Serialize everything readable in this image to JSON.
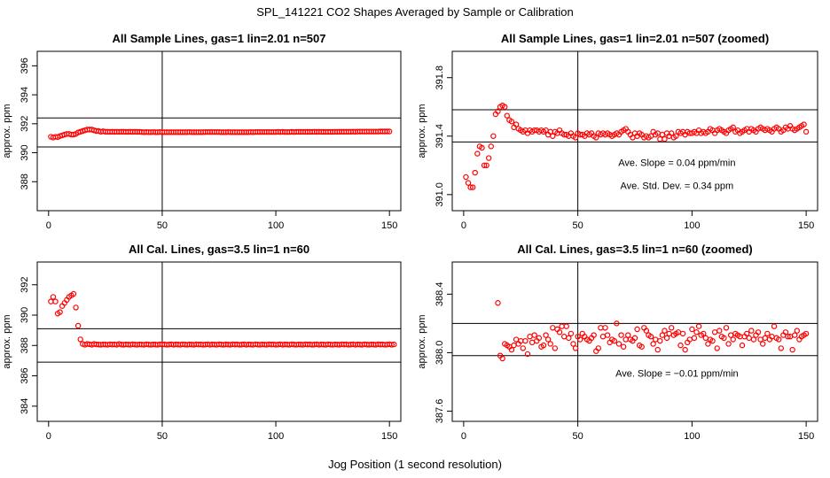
{
  "figure": {
    "title": "SPL_141221  CO2 Shapes Averaged by Sample or Calibration",
    "xlabel": "Jog Position (1 second resolution)"
  },
  "chart_data": [
    {
      "type": "scatter",
      "title": "All Sample Lines, gas=1 lin=2.01 n=507",
      "ylabel": "approx. ppm",
      "xlim": [
        -5,
        155
      ],
      "ylim": [
        386,
        397
      ],
      "xticks": [
        0,
        50,
        100,
        150
      ],
      "yticks": [
        388,
        390,
        392,
        394,
        396
      ],
      "hlines": [
        392.4,
        390.4
      ],
      "vline": 50,
      "annotations": [],
      "series": [
        {
          "color": "#ff0000",
          "x_start": 1,
          "x_step": 1,
          "y": [
            391.1,
            391.05,
            391.1,
            391.08,
            391.15,
            391.2,
            391.25,
            391.3,
            391.3,
            391.25,
            391.25,
            391.3,
            391.4,
            391.45,
            391.5,
            391.55,
            391.6,
            391.6,
            391.6,
            391.55,
            391.5,
            391.5,
            391.45,
            391.48,
            391.45,
            391.45,
            391.44,
            391.45,
            391.44,
            391.45,
            391.44,
            391.45,
            391.45,
            391.44,
            391.44,
            391.45,
            391.44,
            391.45,
            391.44,
            391.44,
            391.43,
            391.42,
            391.43,
            391.42,
            391.42,
            391.43,
            391.42,
            391.42,
            391.43,
            391.42,
            391.42,
            391.42,
            391.42,
            391.42,
            391.42,
            391.42,
            391.42,
            391.42,
            391.42,
            391.42,
            391.42,
            391.43,
            391.42,
            391.42,
            391.42,
            391.42,
            391.42,
            391.42,
            391.43,
            391.43,
            391.43,
            391.43,
            391.43,
            391.43,
            391.43,
            391.42,
            391.42,
            391.42,
            391.43,
            391.42,
            391.42,
            391.42,
            391.42,
            391.42,
            391.42,
            391.42,
            391.42,
            391.42,
            391.43,
            391.42,
            391.43,
            391.43,
            391.43,
            391.43,
            391.43,
            391.43,
            391.43,
            391.43,
            391.43,
            391.43,
            391.44,
            391.43,
            391.44,
            391.43,
            391.43,
            391.43,
            391.44,
            391.43,
            391.44,
            391.44,
            391.44,
            391.44,
            391.44,
            391.44,
            391.44,
            391.44,
            391.45,
            391.44,
            391.45,
            391.44,
            391.44,
            391.44,
            391.44,
            391.44,
            391.44,
            391.45,
            391.44,
            391.45,
            391.45,
            391.45,
            391.45,
            391.45,
            391.45,
            391.46,
            391.45,
            391.46,
            391.46,
            391.46,
            391.46,
            391.46,
            391.46,
            391.46,
            391.46,
            391.46,
            391.46,
            391.47,
            391.47,
            391.47,
            391.47,
            391.47
          ]
        }
      ]
    },
    {
      "type": "scatter",
      "title": "All Sample Lines, gas=1 lin=2.01 n=507 (zoomed)",
      "ylabel": "approx. ppm",
      "xlim": [
        -5,
        155
      ],
      "ylim": [
        390.89,
        391.98
      ],
      "xticks": [
        0,
        50,
        100,
        150
      ],
      "yticks": [
        391.0,
        391.4,
        391.8
      ],
      "yticklabels": [
        "391.0",
        "391.4",
        "391.8"
      ],
      "hlines": [
        391.58,
        391.36
      ],
      "vline": 50,
      "annotations": [
        "Ave. Slope =  0.04  ppm/min",
        "Ave. Std. Dev. =  0.34  ppm"
      ],
      "series": [
        {
          "color": "#ff0000",
          "x_start": 1,
          "x_step": 1,
          "y": [
            391.12,
            391.08,
            391.05,
            391.05,
            391.15,
            391.28,
            391.33,
            391.32,
            391.2,
            391.2,
            391.25,
            391.33,
            391.4,
            391.55,
            391.57,
            391.6,
            391.61,
            391.6,
            391.54,
            391.51,
            391.5,
            391.46,
            391.48,
            391.45,
            391.44,
            391.43,
            391.44,
            391.42,
            391.44,
            391.43,
            391.44,
            391.44,
            391.43,
            391.44,
            391.43,
            391.44,
            391.41,
            391.43,
            391.4,
            391.43,
            391.42,
            391.44,
            391.42,
            391.41,
            391.41,
            391.4,
            391.42,
            391.4,
            391.39,
            391.42,
            391.41,
            391.41,
            391.4,
            391.42,
            391.41,
            391.42,
            391.4,
            391.39,
            391.42,
            391.41,
            391.42,
            391.41,
            391.42,
            391.41,
            391.4,
            391.41,
            391.42,
            391.41,
            391.43,
            391.44,
            391.45,
            391.43,
            391.41,
            391.39,
            391.42,
            391.4,
            391.42,
            391.41,
            391.39,
            391.4,
            391.39,
            391.4,
            391.43,
            391.41,
            391.42,
            391.38,
            391.41,
            391.38,
            391.42,
            391.4,
            391.42,
            391.39,
            391.4,
            391.43,
            391.42,
            391.43,
            391.41,
            391.43,
            391.42,
            391.42,
            391.43,
            391.42,
            391.44,
            391.42,
            391.43,
            391.42,
            391.43,
            391.45,
            391.44,
            391.42,
            391.44,
            391.45,
            391.44,
            391.43,
            391.42,
            391.44,
            391.45,
            391.46,
            391.43,
            391.44,
            391.42,
            391.43,
            391.44,
            391.45,
            391.43,
            391.45,
            391.44,
            391.43,
            391.45,
            391.46,
            391.45,
            391.44,
            391.45,
            391.44,
            391.43,
            391.45,
            391.46,
            391.45,
            391.43,
            391.44,
            391.46,
            391.45,
            391.47,
            391.45,
            391.44,
            391.45,
            391.46,
            391.47,
            391.48,
            391.43
          ]
        }
      ]
    },
    {
      "type": "scatter",
      "title": "All Cal. Lines, gas=3.5 lin=1 n=60",
      "ylabel": "approx. ppm",
      "xlim": [
        -5,
        155
      ],
      "ylim": [
        383,
        393.5
      ],
      "xticks": [
        0,
        50,
        100,
        150
      ],
      "yticks": [
        384,
        386,
        388,
        390,
        392
      ],
      "hlines": [
        389.1,
        386.9
      ],
      "vline": 50,
      "annotations": [],
      "series": [
        {
          "color": "#ff0000",
          "x_start": 1,
          "x_step": 1,
          "y": [
            390.9,
            391.2,
            390.9,
            390.1,
            390.2,
            390.6,
            390.8,
            391.0,
            391.2,
            391.3,
            391.4,
            390.5,
            389.3,
            388.4,
            388.1,
            388.05,
            388.1,
            388.08,
            388.05,
            388.1,
            388.07,
            388.06,
            388.05,
            388.07,
            388.06,
            388.05,
            388.08,
            388.06,
            388.07,
            388.05,
            388.1,
            388.06,
            388.05,
            388.07,
            388.06,
            388.05,
            388.08,
            388.06,
            388.05,
            388.07,
            388.06,
            388.05,
            388.08,
            388.06,
            388.05,
            388.07,
            388.06,
            388.05,
            388.08,
            388.06,
            388.07,
            388.05,
            388.06,
            388.08,
            388.05,
            388.07,
            388.06,
            388.05,
            388.08,
            388.06,
            388.05,
            388.07,
            388.06,
            388.05,
            388.08,
            388.06,
            388.07,
            388.05,
            388.06,
            388.08,
            388.05,
            388.07,
            388.06,
            388.05,
            388.08,
            388.06,
            388.05,
            388.07,
            388.06,
            388.05,
            388.08,
            388.06,
            388.07,
            388.05,
            388.06,
            388.08,
            388.05,
            388.07,
            388.06,
            388.05,
            388.08,
            388.06,
            388.05,
            388.07,
            388.06,
            388.05,
            388.08,
            388.06,
            388.07,
            388.05,
            388.06,
            388.08,
            388.05,
            388.07,
            388.06,
            388.05,
            388.08,
            388.06,
            388.05,
            388.07,
            388.06,
            388.05,
            388.08,
            388.06,
            388.07,
            388.05,
            388.06,
            388.08,
            388.05,
            388.07,
            388.06,
            388.05,
            388.08,
            388.06,
            388.05,
            388.07,
            388.06,
            388.05,
            388.08,
            388.06,
            388.07,
            388.05,
            388.06,
            388.08,
            388.05,
            388.07,
            388.06,
            388.05,
            388.08,
            388.06,
            388.05,
            388.07,
            388.06,
            388.05,
            388.08,
            388.06,
            388.07,
            388.05,
            388.06,
            388.08,
            388.05,
            388.07
          ]
        }
      ]
    },
    {
      "type": "scatter",
      "title": "All Cal. Lines, gas=3.5 lin=1 n=60 (zoomed)",
      "ylabel": "approx. ppm",
      "xlim": [
        -5,
        155
      ],
      "ylim": [
        387.53,
        388.62
      ],
      "xticks": [
        0,
        50,
        100,
        150
      ],
      "yticks": [
        387.6,
        388.0,
        388.4
      ],
      "yticklabels": [
        "387.6",
        "388.0",
        "388.4"
      ],
      "hlines": [
        388.2,
        387.98
      ],
      "vline": 50,
      "annotations": [
        "Ave. Slope =  −0.01  ppm/min"
      ],
      "series": [
        {
          "color": "#ff0000",
          "x_start": 15,
          "x_step": 1,
          "y": [
            388.34,
            387.98,
            387.96,
            388.06,
            388.05,
            388.04,
            388.02,
            388.05,
            388.09,
            388.06,
            388.08,
            388.03,
            388.08,
            387.99,
            388.11,
            388.07,
            388.12,
            388.08,
            388.1,
            388.04,
            388.05,
            388.12,
            388.09,
            388.06,
            388.17,
            388.03,
            388.16,
            388.14,
            388.18,
            388.11,
            388.18,
            388.1,
            388.13,
            388.06,
            388.03,
            388.11,
            388.09,
            388.13,
            388.11,
            388.09,
            388.08,
            388.1,
            388.12,
            388.01,
            388.03,
            388.17,
            388.11,
            388.17,
            388.12,
            388.07,
            388.09,
            388.08,
            388.2,
            388.06,
            388.12,
            388.04,
            388.09,
            388.12,
            388.09,
            388.08,
            388.1,
            388.16,
            388.05,
            388.04,
            388.17,
            388.15,
            388.12,
            388.11,
            388.06,
            388.09,
            388.02,
            388.08,
            388.12,
            388.15,
            388.1,
            388.13,
            388.17,
            388.12,
            388.13,
            388.14,
            388.05,
            388.13,
            388.02,
            388.07,
            388.09,
            388.16,
            388.1,
            388.14,
            388.18,
            388.12,
            388.13,
            388.1,
            388.06,
            388.09,
            388.08,
            388.14,
            388.03,
            388.15,
            388.11,
            388.1,
            388.17,
            388.06,
            388.12,
            388.09,
            388.13,
            388.12,
            388.11,
            388.05,
            388.11,
            388.13,
            388.1,
            388.15,
            388.09,
            388.12,
            388.14,
            388.09,
            388.06,
            388.1,
            388.13,
            388.09,
            388.11,
            388.18,
            388.1,
            388.09,
            388.03,
            388.12,
            388.14,
            388.11,
            388.11,
            388.02,
            388.12,
            388.15,
            388.09,
            388.11,
            388.12,
            388.13
          ]
        }
      ]
    }
  ]
}
